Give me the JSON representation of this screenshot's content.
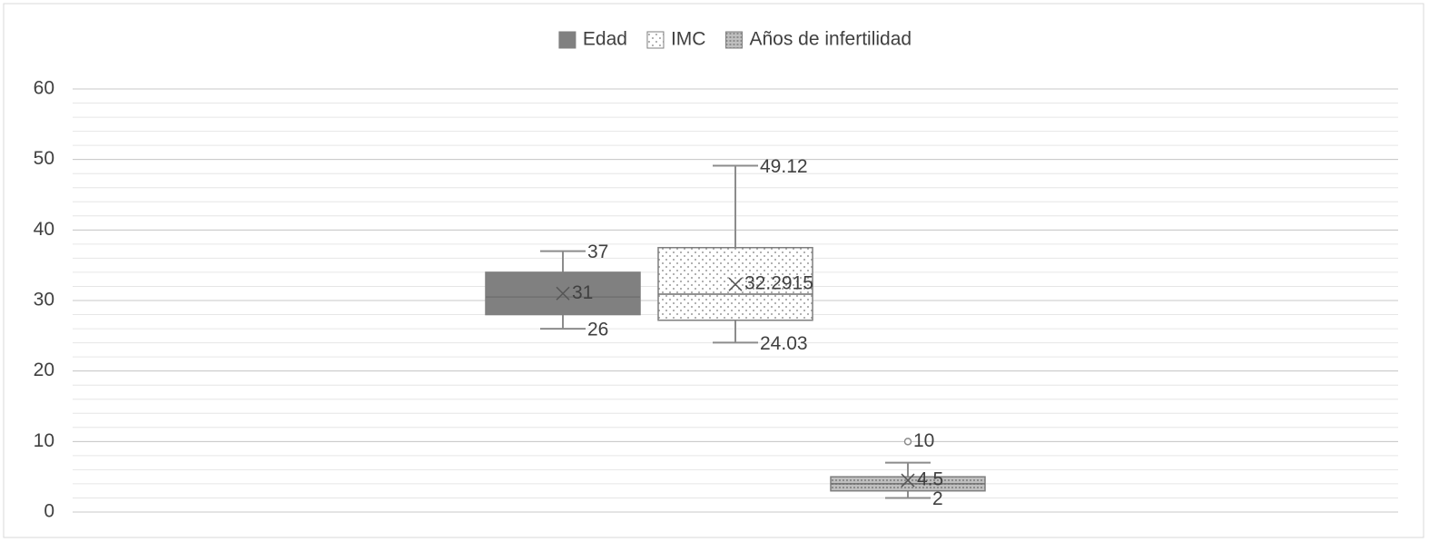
{
  "chart_data": {
    "type": "box",
    "series": [
      {
        "name": "Edad",
        "color": "#808080",
        "pattern": "solid",
        "min": 26,
        "q1": 28,
        "median": 30.5,
        "q3": 34,
        "max": 37,
        "mean": 31,
        "outliers": [],
        "data_labels": [
          "max",
          "min",
          "mean"
        ]
      },
      {
        "name": "IMC",
        "color": "#ffffff",
        "pattern": "dots",
        "min": 24.03,
        "q1": 27.2,
        "median": 30.9,
        "q3": 37.5,
        "max": 49.12,
        "mean": 32.2915,
        "outliers": [],
        "data_labels": [
          "max",
          "min",
          "mean"
        ]
      },
      {
        "name": "Años de infertilidad",
        "color": "#bfbfbf",
        "pattern": "dense-dots",
        "min": 2,
        "q1": 3,
        "median": 4,
        "q3": 5,
        "max": 7,
        "mean": 4.5,
        "outliers": [
          10
        ],
        "data_labels": [
          "min",
          "mean",
          "outliers"
        ]
      }
    ],
    "ylim": [
      0,
      60
    ],
    "yticks": [
      0,
      10,
      20,
      30,
      40,
      50,
      60
    ],
    "grid": true,
    "minor_grid": true,
    "legend": "top"
  }
}
